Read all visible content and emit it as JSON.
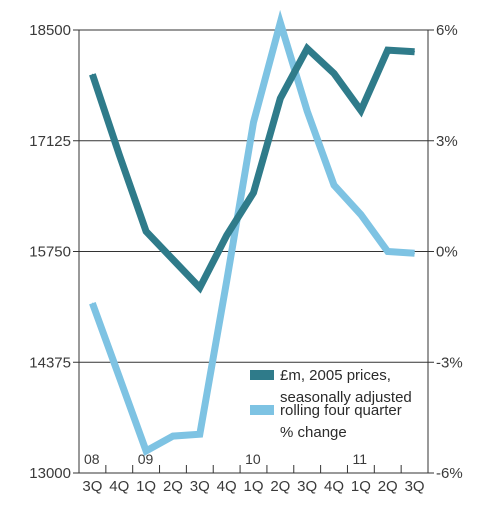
{
  "chart_data": {
    "type": "line",
    "categories": [
      "3Q",
      "4Q",
      "1Q",
      "2Q",
      "3Q",
      "4Q",
      "1Q",
      "2Q",
      "3Q",
      "4Q",
      "1Q",
      "2Q",
      "3Q"
    ],
    "year_labels": [
      {
        "text": "08",
        "index": 0
      },
      {
        "text": "09",
        "index": 2
      },
      {
        "text": "10",
        "index": 6
      },
      {
        "text": "11",
        "index": 10
      }
    ],
    "y_left": {
      "ticks": [
        "18500",
        "17125",
        "15750",
        "14375",
        "13000"
      ],
      "tick_values": [
        18500,
        17125,
        15750,
        14375,
        13000
      ],
      "ylim": [
        13000,
        18500
      ]
    },
    "y_right": {
      "ticks": [
        "6%",
        "3%",
        "0%",
        "-3%",
        "-6%"
      ],
      "tick_values": [
        6,
        3,
        0,
        -3,
        -6
      ],
      "ylim": [
        -6,
        6
      ]
    },
    "grid": "horizontal",
    "legend_position": "bottom-right",
    "series": [
      {
        "name": "£m, 2005 prices, seasonally adjusted",
        "label_lines": [
          "£m, 2005 prices,",
          "seasonally adjusted"
        ],
        "axis": "left",
        "color": "#2f7b8a",
        "values": [
          17950,
          16950,
          16000,
          15650,
          15300,
          15950,
          16480,
          17650,
          18270,
          17960,
          17500,
          18250,
          18230
        ]
      },
      {
        "name": "rolling four quarter % change",
        "label_lines": [
          "rolling four quarter",
          "% change"
        ],
        "axis": "right",
        "color": "#7ec3e3",
        "values": [
          -1.4,
          -3.4,
          -5.4,
          -5.0,
          -4.95,
          -0.8,
          3.5,
          6.2,
          3.8,
          1.8,
          1.0,
          0.0,
          -0.05
        ]
      }
    ]
  }
}
